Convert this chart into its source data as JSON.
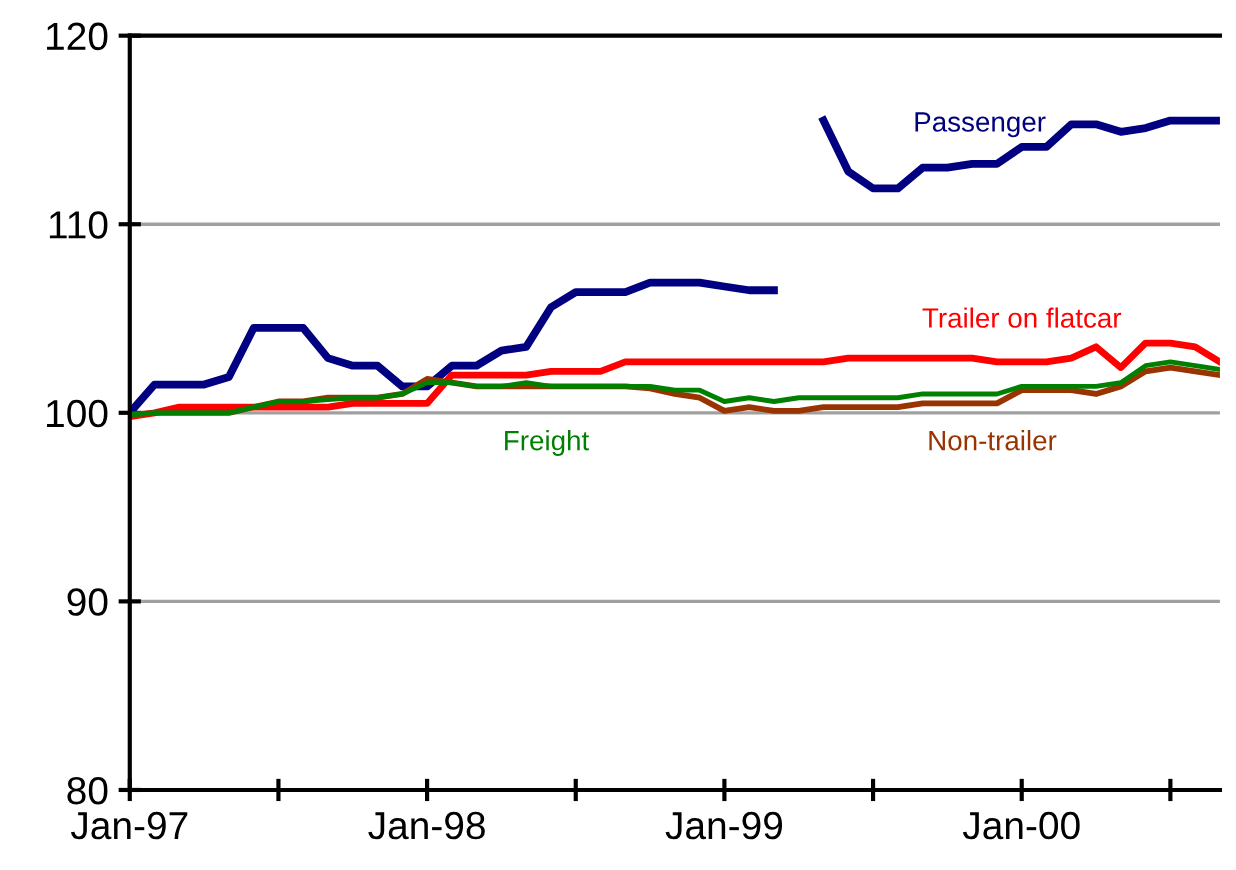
{
  "chart_data": {
    "type": "line",
    "x": [
      "1997-01",
      "1997-02",
      "1997-03",
      "1997-04",
      "1997-05",
      "1997-06",
      "1997-07",
      "1997-08",
      "1997-09",
      "1997-10",
      "1997-11",
      "1997-12",
      "1998-01",
      "1998-02",
      "1998-03",
      "1998-04",
      "1998-05",
      "1998-06",
      "1998-07",
      "1998-08",
      "1998-09",
      "1998-10",
      "1998-11",
      "1998-12",
      "1999-01",
      "1999-02",
      "1999-03",
      "1999-04",
      "1999-05",
      "1999-06",
      "1999-07",
      "1999-08",
      "1999-09",
      "1999-10",
      "1999-11",
      "1999-12",
      "2000-01",
      "2000-02",
      "2000-03",
      "2000-04",
      "2000-05",
      "2000-06",
      "2000-07",
      "2000-08",
      "2000-09"
    ],
    "series": [
      {
        "name": "Passenger",
        "color": "#000080",
        "values": [
          100,
          101.5,
          101.5,
          101.5,
          101.9,
          104.5,
          104.5,
          104.5,
          102.9,
          102.5,
          102.5,
          101.4,
          101.4,
          102.5,
          102.5,
          103.3,
          103.5,
          105.6,
          106.4,
          106.4,
          106.4,
          106.9,
          106.9,
          106.9,
          106.7,
          106.5,
          106.5,
          null,
          115.5,
          112.8,
          111.9,
          111.9,
          113.0,
          113.0,
          113.2,
          113.2,
          114.1,
          114.1,
          115.3,
          115.3,
          114.9,
          115.1,
          115.5,
          115.5,
          115.5
        ]
      },
      {
        "name": "Trailer on flatcar",
        "color": "#ff0000",
        "values": [
          99.8,
          100.0,
          100.3,
          100.3,
          100.3,
          100.3,
          100.3,
          100.3,
          100.3,
          100.5,
          100.5,
          100.5,
          100.5,
          102.0,
          102.0,
          102.0,
          102.0,
          102.2,
          102.2,
          102.2,
          102.7,
          102.7,
          102.7,
          102.7,
          102.7,
          102.7,
          102.7,
          102.7,
          102.7,
          102.9,
          102.9,
          102.9,
          102.9,
          102.9,
          102.9,
          102.7,
          102.7,
          102.7,
          102.9,
          103.5,
          102.4,
          103.7,
          103.7,
          103.5,
          102.7
        ]
      },
      {
        "name": "Non-trailer",
        "color": "#993300",
        "values": [
          99.9,
          100.0,
          100.0,
          100.0,
          100.0,
          100.3,
          100.6,
          100.6,
          100.8,
          100.8,
          100.8,
          101.0,
          101.8,
          101.6,
          101.4,
          101.4,
          101.4,
          101.4,
          101.4,
          101.4,
          101.4,
          101.3,
          101.0,
          100.8,
          100.1,
          100.3,
          100.1,
          100.1,
          100.3,
          100.3,
          100.3,
          100.3,
          100.5,
          100.5,
          100.5,
          100.5,
          101.2,
          101.2,
          101.2,
          101.0,
          101.4,
          102.2,
          102.4,
          102.2,
          102.0
        ]
      },
      {
        "name": "Freight",
        "color": "#008000",
        "values": [
          99.9,
          100.0,
          100.0,
          100.0,
          100.0,
          100.3,
          100.6,
          100.6,
          100.7,
          100.8,
          100.8,
          101.0,
          101.6,
          101.6,
          101.4,
          101.4,
          101.6,
          101.4,
          101.4,
          101.4,
          101.4,
          101.4,
          101.2,
          101.2,
          100.6,
          100.8,
          100.6,
          100.8,
          100.8,
          100.8,
          100.8,
          100.8,
          101.0,
          101.0,
          101.0,
          101.0,
          101.4,
          101.4,
          101.4,
          101.4,
          101.6,
          102.5,
          102.7,
          102.5,
          102.3
        ]
      }
    ],
    "xlim": [
      "1997-01",
      "2000-09"
    ],
    "xticks": [
      {
        "value": "1997-01",
        "label": "Jan-97"
      },
      {
        "value": "1997-07",
        "label": null
      },
      {
        "value": "1998-01",
        "label": "Jan-98"
      },
      {
        "value": "1998-07",
        "label": null
      },
      {
        "value": "1999-01",
        "label": "Jan-99"
      },
      {
        "value": "1999-07",
        "label": null
      },
      {
        "value": "2000-01",
        "label": "Jan-00"
      },
      {
        "value": "2000-07",
        "label": null
      }
    ],
    "ylim": [
      80,
      120
    ],
    "yticks": [
      80,
      90,
      100,
      110,
      120
    ],
    "grid": "y",
    "legend": false,
    "marker": "none",
    "line_style": "solid"
  }
}
